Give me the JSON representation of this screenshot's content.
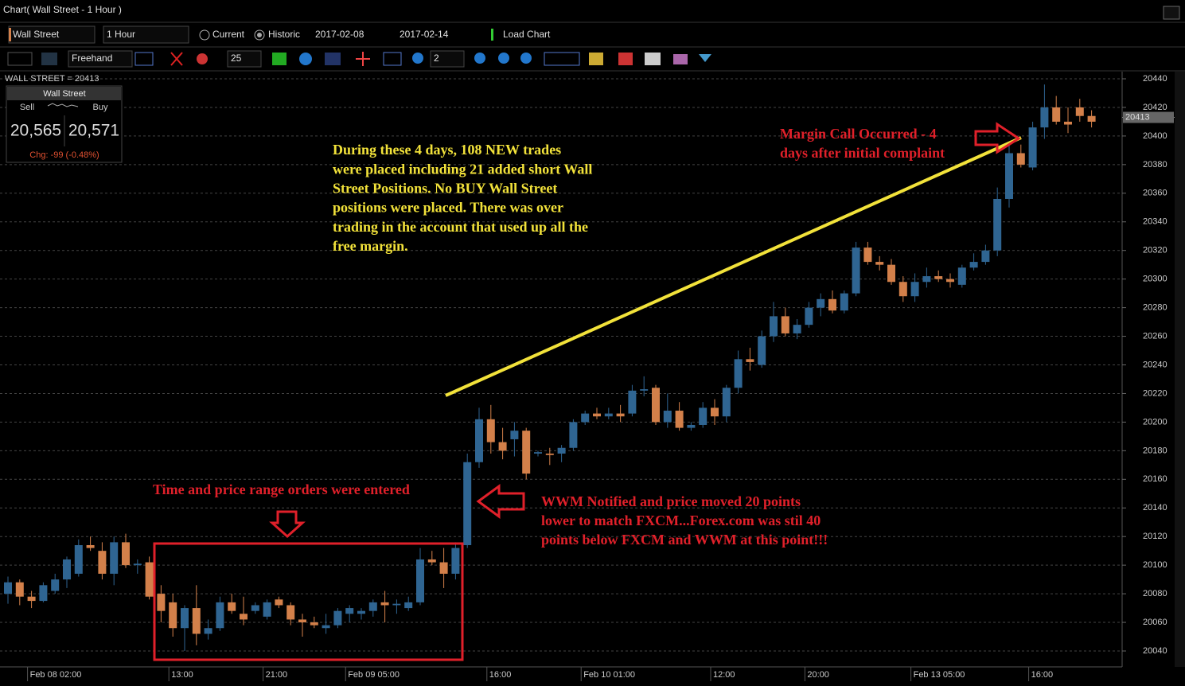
{
  "window": {
    "title": "Chart( Wall Street - 1 Hour )"
  },
  "toolbar": {
    "instrument": "Wall Street",
    "timeframe": "1 Hour",
    "current": "Current",
    "historic": "Historic",
    "date_from": "2017-02-08",
    "date_to": "2017-02-14",
    "load_chart": "Load Chart",
    "draw_mode": "Freehand",
    "line_width": "25",
    "zoom": "2"
  },
  "quote_panel": {
    "header": "WALL STREET = 20413",
    "instrument": "Wall Street",
    "sell_label": "Sell",
    "buy_label": "Buy",
    "sell": "20,565",
    "buy": "20,571",
    "change": "Chg: -99  (-0.48%)"
  },
  "annotations": {
    "trades_note": [
      "During these 4 days, 108 NEW trades",
      "were placed including 21 added short Wall",
      "Street Positions.  No BUY Wall Street",
      "positions were placed.  There was over",
      "trading in the account that used up all the",
      "free margin."
    ],
    "margin_call": [
      "Margin Call Occurred - 4",
      "days after initial complaint"
    ],
    "orders_note": "Time and price range orders were entered",
    "wwm_note": [
      "WWM Notified and price moved 20 points",
      "lower to match FXCM...Forex.com was stil 40",
      "points below FXCM and WWM at this point!!!"
    ]
  },
  "chart_data": {
    "type": "candlestick",
    "up_color": "#2f6592",
    "down_color": "#d3804a",
    "grid": true,
    "last_price": 20413,
    "categories": [
      null,
      null,
      "Feb 08 02:00",
      null,
      null,
      null,
      null,
      null,
      null,
      null,
      null,
      null,
      null,
      null,
      "13:00",
      null,
      null,
      null,
      null,
      null,
      null,
      null,
      "21:00",
      null,
      null,
      null,
      null,
      null,
      null,
      "Feb 09 05:00",
      null,
      null,
      null,
      null,
      null,
      null,
      null,
      null,
      null,
      null,
      null,
      "16:00",
      null,
      null,
      null,
      null,
      null,
      null,
      null,
      "Feb 10 01:00",
      null,
      null,
      null,
      null,
      null,
      null,
      null,
      null,
      null,
      null,
      "12:00",
      null,
      null,
      null,
      null,
      null,
      null,
      null,
      "20:00",
      null,
      null,
      null,
      null,
      null,
      null,
      null,
      null,
      "Feb 13 05:00",
      null,
      null,
      null,
      null,
      null,
      null,
      null,
      null,
      null,
      "16:00",
      null,
      null,
      null,
      null,
      null
    ],
    "open": [
      20080,
      20088,
      20078,
      20075,
      20082,
      20090,
      20094,
      20114,
      20110,
      20094,
      20116,
      20100,
      20102,
      20080,
      20074,
      20056,
      20070,
      20052,
      20056,
      20074,
      20066,
      20068,
      20064,
      20076,
      20072,
      20062,
      20060,
      20056,
      20058,
      20066,
      20066,
      20068,
      20074,
      20072,
      20070,
      20074,
      20104,
      20102,
      20094,
      20114,
      20172,
      20202,
      20186,
      20188,
      20194,
      20178,
      20178,
      20178,
      20182,
      20200,
      20206,
      20204,
      20206,
      20206,
      20222,
      20224,
      20200,
      20208,
      20196,
      20198,
      20210,
      20204,
      20224,
      20244,
      20240,
      20260,
      20274,
      20262,
      20268,
      20280,
      20286,
      20278,
      20290,
      20322,
      20312,
      20310,
      20298,
      20288,
      20298,
      20302,
      20300,
      20296,
      20308,
      20312,
      20320,
      20356,
      20388,
      20378,
      20406,
      20420,
      20410,
      20420,
      20414
    ],
    "high": [
      20092,
      20090,
      20082,
      20088,
      20094,
      20106,
      20118,
      20120,
      20116,
      20120,
      20122,
      20104,
      20106,
      20086,
      20080,
      20072,
      20086,
      20062,
      20078,
      20080,
      20078,
      20074,
      20076,
      20078,
      20074,
      20066,
      20064,
      20066,
      20070,
      20072,
      20070,
      20076,
      20082,
      20076,
      20078,
      20112,
      20110,
      20112,
      20116,
      20178,
      20210,
      20212,
      20196,
      20200,
      20196,
      20180,
      20182,
      20184,
      20202,
      20208,
      20210,
      20210,
      20212,
      20226,
      20232,
      20226,
      20220,
      20214,
      20200,
      20214,
      20216,
      20226,
      20250,
      20252,
      20264,
      20284,
      20280,
      20272,
      20284,
      20290,
      20292,
      20292,
      20326,
      20326,
      20316,
      20314,
      20302,
      20304,
      20308,
      20306,
      20304,
      20310,
      20318,
      20324,
      20364,
      20394,
      20394,
      20410,
      20436,
      20428,
      20420,
      20426,
      20418
    ],
    "low": [
      20073,
      20072,
      20070,
      20074,
      20080,
      20084,
      20092,
      20110,
      20090,
      20086,
      20098,
      20094,
      20076,
      20060,
      20050,
      20040,
      20044,
      20048,
      20054,
      20066,
      20058,
      20066,
      20062,
      20070,
      20058,
      20050,
      20056,
      20052,
      20056,
      20060,
      20062,
      20064,
      20060,
      20066,
      20068,
      20072,
      20100,
      20084,
      20090,
      20112,
      20168,
      20178,
      20174,
      20176,
      20160,
      20176,
      20170,
      20172,
      20180,
      20198,
      20202,
      20202,
      20200,
      20204,
      20218,
      20198,
      20196,
      20194,
      20194,
      20196,
      20198,
      20200,
      20220,
      20236,
      20238,
      20256,
      20260,
      20258,
      20266,
      20274,
      20276,
      20276,
      20288,
      20310,
      20306,
      20296,
      20284,
      20284,
      20294,
      20298,
      20294,
      20294,
      20306,
      20310,
      20316,
      20350,
      20378,
      20376,
      20398,
      20408,
      20402,
      20410,
      20406
    ],
    "close": [
      20088,
      20078,
      20075,
      20086,
      20090,
      20104,
      20114,
      20112,
      20094,
      20116,
      20100,
      20101,
      20078,
      20068,
      20056,
      20070,
      20052,
      20056,
      20074,
      20068,
      20062,
      20072,
      20074,
      20072,
      20062,
      20060,
      20058,
      20058,
      20068,
      20070,
      20068,
      20074,
      20072,
      20073,
      20074,
      20104,
      20102,
      20094,
      20112,
      20172,
      20202,
      20186,
      20180,
      20194,
      20164,
      20179,
      20177,
      20182,
      20200,
      20206,
      20204,
      20206,
      20204,
      20222,
      20223,
      20200,
      20208,
      20196,
      20198,
      20210,
      20204,
      20224,
      20244,
      20242,
      20260,
      20274,
      20262,
      20268,
      20280,
      20286,
      20278,
      20290,
      20322,
      20312,
      20310,
      20298,
      20288,
      20298,
      20302,
      20300,
      20298,
      20308,
      20312,
      20320,
      20356,
      20388,
      20380,
      20406,
      20420,
      20410,
      20408,
      20414,
      20410
    ],
    "ylim": [
      20440,
      20040
    ],
    "yticks": [
      20040,
      20060,
      20080,
      20100,
      20120,
      20140,
      20160,
      20180,
      20200,
      20220,
      20240,
      20260,
      20280,
      20300,
      20320,
      20340,
      20360,
      20380,
      20400,
      20420,
      20440
    ]
  }
}
